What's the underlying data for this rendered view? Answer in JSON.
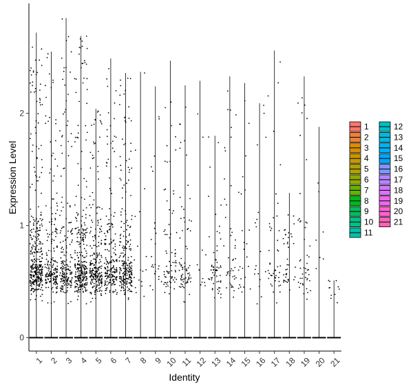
{
  "chart_data": {
    "type": "violin-jitter",
    "xlabel": "Identity",
    "ylabel": "Expression Level",
    "ylim": [
      -0.12,
      2.98
    ],
    "yticks": [
      0,
      1,
      2
    ],
    "categories": [
      "1",
      "2",
      "3",
      "4",
      "5",
      "6",
      "7",
      "8",
      "9",
      "10",
      "11",
      "12",
      "13",
      "14",
      "15",
      "16",
      "17",
      "18",
      "19",
      "20",
      "21"
    ],
    "max_values": [
      2.72,
      2.55,
      2.85,
      2.69,
      2.04,
      2.49,
      2.36,
      2.37,
      2.24,
      2.47,
      2.25,
      2.29,
      1.8,
      2.33,
      2.27,
      2.09,
      2.56,
      1.29,
      2.33,
      1.88,
      0.51
    ],
    "point_density": [
      1.0,
      0.55,
      0.55,
      0.85,
      0.7,
      0.55,
      0.7,
      0.04,
      0.06,
      0.2,
      0.2,
      0.02,
      0.15,
      0.12,
      0.06,
      0.04,
      0.12,
      0.1,
      0.12,
      0.01,
      0.02
    ],
    "legend": {
      "placement": "right",
      "entries": [
        {
          "label": "1",
          "color": "#F8766D"
        },
        {
          "label": "2",
          "color": "#EC8239"
        },
        {
          "label": "3",
          "color": "#DB8E00"
        },
        {
          "label": "4",
          "color": "#C79800"
        },
        {
          "label": "5",
          "color": "#AEA200"
        },
        {
          "label": "6",
          "color": "#8FAA00"
        },
        {
          "label": "7",
          "color": "#64B200"
        },
        {
          "label": "8",
          "color": "#00B81B"
        },
        {
          "label": "9",
          "color": "#00BD5C"
        },
        {
          "label": "10",
          "color": "#00C085"
        },
        {
          "label": "11",
          "color": "#00C1A7"
        },
        {
          "label": "12",
          "color": "#00BFC4"
        },
        {
          "label": "13",
          "color": "#00BADE"
        },
        {
          "label": "14",
          "color": "#00B2F3"
        },
        {
          "label": "15",
          "color": "#00A6FF"
        },
        {
          "label": "16",
          "color": "#7C96FF"
        },
        {
          "label": "17",
          "color": "#B385FF"
        },
        {
          "label": "18",
          "color": "#D874FD"
        },
        {
          "label": "19",
          "color": "#EF67EB"
        },
        {
          "label": "20",
          "color": "#FD61D3"
        },
        {
          "label": "21",
          "color": "#FF63B6"
        }
      ]
    }
  }
}
